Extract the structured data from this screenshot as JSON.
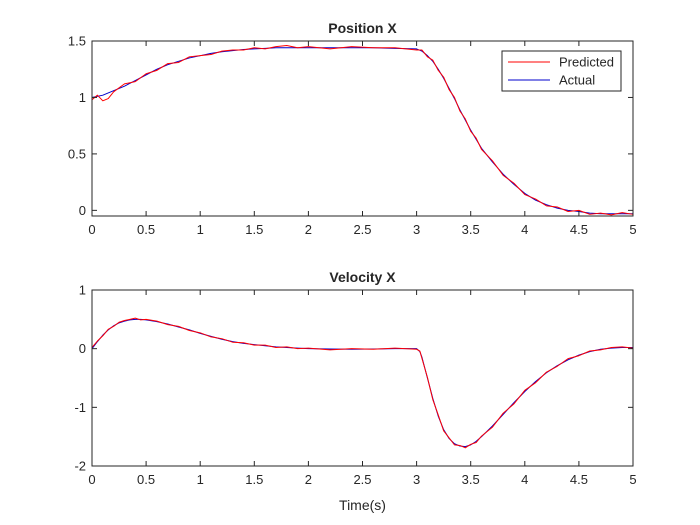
{
  "chart_data": [
    {
      "type": "line",
      "title": "Position X",
      "xlabel": "",
      "ylabel": "",
      "xlim": [
        0,
        5
      ],
      "ylim": [
        -0.05,
        1.5
      ],
      "x_ticks": [
        "0",
        "0.5",
        "1",
        "1.5",
        "2",
        "2.5",
        "3",
        "3.5",
        "4",
        "4.5",
        "5"
      ],
      "y_ticks": [
        "0",
        "0.5",
        "1",
        "1.5"
      ],
      "grid": false,
      "legend": {
        "position": "top-right",
        "entries": [
          "Predicted",
          "Actual"
        ]
      },
      "series": [
        {
          "name": "Actual",
          "color": "#0000cc",
          "x": [
            0,
            0.1,
            0.2,
            0.3,
            0.4,
            0.5,
            0.6,
            0.7,
            0.8,
            0.9,
            1.0,
            1.1,
            1.2,
            1.3,
            1.4,
            1.5,
            1.6,
            1.7,
            1.8,
            1.9,
            2.0,
            2.2,
            2.4,
            2.6,
            2.8,
            3.0,
            3.05,
            3.1,
            3.15,
            3.2,
            3.25,
            3.3,
            3.35,
            3.4,
            3.45,
            3.5,
            3.55,
            3.6,
            3.7,
            3.8,
            3.9,
            4.0,
            4.1,
            4.2,
            4.3,
            4.4,
            4.5,
            4.6,
            4.7,
            4.8,
            4.9,
            5.0
          ],
          "y": [
            1.0,
            1.02,
            1.06,
            1.1,
            1.15,
            1.2,
            1.25,
            1.29,
            1.32,
            1.35,
            1.37,
            1.39,
            1.405,
            1.415,
            1.425,
            1.43,
            1.435,
            1.44,
            1.44,
            1.44,
            1.44,
            1.44,
            1.44,
            1.44,
            1.435,
            1.43,
            1.41,
            1.37,
            1.32,
            1.25,
            1.17,
            1.08,
            0.99,
            0.89,
            0.8,
            0.71,
            0.63,
            0.55,
            0.43,
            0.32,
            0.23,
            0.15,
            0.09,
            0.05,
            0.02,
            0.0,
            -0.01,
            -0.025,
            -0.03,
            -0.03,
            -0.03,
            -0.03
          ]
        },
        {
          "name": "Predicted",
          "color": "#ff0000",
          "x": [
            0,
            0.05,
            0.1,
            0.15,
            0.2,
            0.3,
            0.4,
            0.5,
            0.6,
            0.7,
            0.8,
            0.9,
            1.0,
            1.1,
            1.2,
            1.3,
            1.4,
            1.5,
            1.6,
            1.7,
            1.8,
            1.9,
            2.0,
            2.2,
            2.4,
            2.6,
            2.8,
            3.0,
            3.05,
            3.1,
            3.15,
            3.2,
            3.25,
            3.3,
            3.35,
            3.4,
            3.45,
            3.5,
            3.55,
            3.6,
            3.7,
            3.8,
            3.9,
            4.0,
            4.1,
            4.2,
            4.3,
            4.4,
            4.5,
            4.6,
            4.7,
            4.8,
            4.9,
            5.0
          ],
          "y": [
            0.98,
            1.02,
            0.97,
            0.99,
            1.05,
            1.12,
            1.14,
            1.21,
            1.24,
            1.3,
            1.31,
            1.36,
            1.37,
            1.38,
            1.41,
            1.42,
            1.42,
            1.44,
            1.43,
            1.45,
            1.46,
            1.44,
            1.45,
            1.43,
            1.45,
            1.44,
            1.44,
            1.42,
            1.42,
            1.36,
            1.33,
            1.24,
            1.18,
            1.07,
            1.0,
            0.88,
            0.81,
            0.7,
            0.64,
            0.54,
            0.44,
            0.31,
            0.24,
            0.14,
            0.1,
            0.04,
            0.03,
            -0.01,
            0.0,
            -0.035,
            -0.025,
            -0.04,
            -0.02,
            -0.035
          ]
        }
      ]
    },
    {
      "type": "line",
      "title": "Velocity X",
      "xlabel": "Time(s)",
      "ylabel": "",
      "xlim": [
        0,
        5
      ],
      "ylim": [
        -2,
        1
      ],
      "x_ticks": [
        "0",
        "0.5",
        "1",
        "1.5",
        "2",
        "2.5",
        "3",
        "3.5",
        "4",
        "4.5",
        "5"
      ],
      "y_ticks": [
        "-2",
        "-1",
        "0",
        "1"
      ],
      "grid": false,
      "series": [
        {
          "name": "Actual",
          "color": "#0000cc",
          "x": [
            0,
            0.05,
            0.1,
            0.15,
            0.2,
            0.25,
            0.3,
            0.35,
            0.4,
            0.45,
            0.5,
            0.6,
            0.7,
            0.8,
            0.9,
            1.0,
            1.1,
            1.2,
            1.3,
            1.4,
            1.5,
            1.6,
            1.7,
            1.8,
            1.9,
            2.0,
            2.2,
            2.4,
            2.6,
            2.8,
            3.0,
            3.03,
            3.05,
            3.1,
            3.15,
            3.2,
            3.25,
            3.3,
            3.35,
            3.4,
            3.45,
            3.5,
            3.55,
            3.6,
            3.7,
            3.8,
            3.9,
            4.0,
            4.1,
            4.2,
            4.3,
            4.4,
            4.5,
            4.6,
            4.7,
            4.8,
            4.9,
            5.0
          ],
          "y": [
            0.0,
            0.12,
            0.23,
            0.32,
            0.39,
            0.44,
            0.47,
            0.49,
            0.5,
            0.5,
            0.49,
            0.46,
            0.42,
            0.37,
            0.32,
            0.26,
            0.21,
            0.16,
            0.12,
            0.09,
            0.07,
            0.05,
            0.03,
            0.02,
            0.01,
            0.0,
            -0.005,
            -0.01,
            -0.005,
            0.0,
            0.0,
            -0.05,
            -0.15,
            -0.5,
            -0.85,
            -1.15,
            -1.38,
            -1.53,
            -1.62,
            -1.66,
            -1.67,
            -1.64,
            -1.58,
            -1.5,
            -1.32,
            -1.12,
            -0.92,
            -0.73,
            -0.56,
            -0.41,
            -0.29,
            -0.19,
            -0.11,
            -0.05,
            -0.01,
            0.01,
            0.02,
            0.02
          ]
        },
        {
          "name": "Predicted",
          "color": "#ff0000",
          "x": [
            0,
            0.05,
            0.1,
            0.15,
            0.2,
            0.25,
            0.3,
            0.35,
            0.4,
            0.45,
            0.5,
            0.6,
            0.7,
            0.8,
            0.9,
            1.0,
            1.1,
            1.2,
            1.3,
            1.4,
            1.5,
            1.6,
            1.7,
            1.8,
            1.9,
            2.0,
            2.2,
            2.4,
            2.6,
            2.8,
            3.0,
            3.03,
            3.05,
            3.1,
            3.15,
            3.2,
            3.25,
            3.3,
            3.35,
            3.4,
            3.45,
            3.5,
            3.55,
            3.6,
            3.7,
            3.8,
            3.9,
            4.0,
            4.1,
            4.2,
            4.3,
            4.4,
            4.5,
            4.6,
            4.7,
            4.8,
            4.9,
            5.0
          ],
          "y": [
            0.02,
            0.13,
            0.22,
            0.33,
            0.38,
            0.45,
            0.48,
            0.5,
            0.52,
            0.49,
            0.5,
            0.47,
            0.41,
            0.38,
            0.31,
            0.27,
            0.2,
            0.17,
            0.11,
            0.1,
            0.06,
            0.06,
            0.02,
            0.03,
            0.0,
            0.01,
            -0.02,
            0.0,
            -0.01,
            0.01,
            -0.01,
            -0.04,
            -0.17,
            -0.49,
            -0.87,
            -1.13,
            -1.4,
            -1.52,
            -1.64,
            -1.65,
            -1.69,
            -1.63,
            -1.6,
            -1.49,
            -1.34,
            -1.1,
            -0.94,
            -0.71,
            -0.58,
            -0.4,
            -0.3,
            -0.17,
            -0.12,
            -0.04,
            -0.02,
            0.02,
            0.03,
            0.01
          ]
        }
      ]
    }
  ]
}
